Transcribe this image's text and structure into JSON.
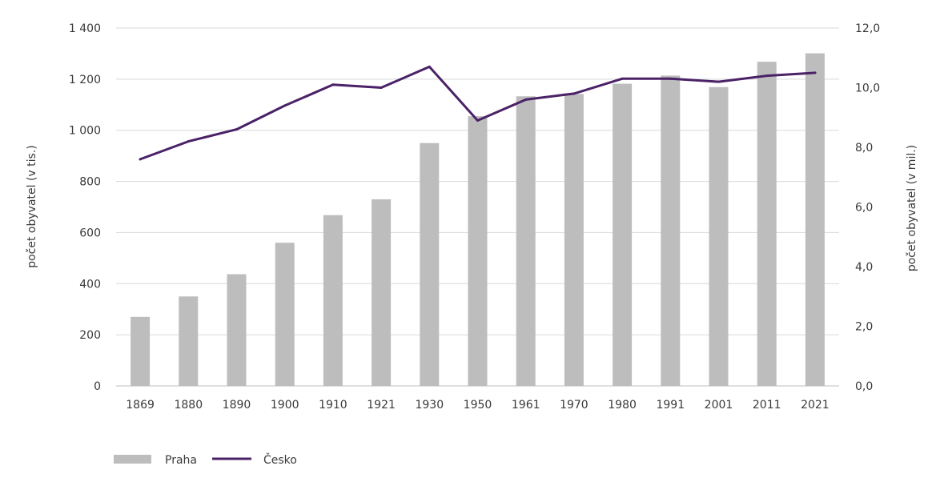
{
  "chart_data": {
    "type": "bar",
    "categories": [
      "1869",
      "1880",
      "1890",
      "1900",
      "1910",
      "1921",
      "1930",
      "1950",
      "1961",
      "1970",
      "1980",
      "1991",
      "2001",
      "2011",
      "2021"
    ],
    "series": [
      {
        "name": "Praha",
        "type": "bar",
        "axis": "left",
        "color": "#bdbdbd",
        "values": [
          270,
          350,
          437,
          560,
          668,
          730,
          950,
          1055,
          1133,
          1142,
          1182,
          1214,
          1169,
          1268,
          1301
        ]
      },
      {
        "name": "Česko",
        "type": "line",
        "axis": "right",
        "color": "#4b2267",
        "values": [
          7.6,
          8.2,
          8.6,
          9.4,
          10.1,
          10.0,
          10.7,
          8.9,
          9.6,
          9.8,
          10.3,
          10.3,
          10.2,
          10.4,
          10.5
        ]
      }
    ],
    "y_left": {
      "label": "počet obyvatel (v tis.)",
      "lim": [
        0,
        1400
      ],
      "ticks": [
        0,
        200,
        400,
        600,
        800,
        1000,
        1200,
        1400
      ],
      "tick_labels": [
        "0",
        "200",
        "400",
        "600",
        "800",
        "1 000",
        "1 200",
        "1 400"
      ]
    },
    "y_right": {
      "label": "počet obyvatel (v mil.)",
      "lim": [
        0,
        12
      ],
      "ticks": [
        0,
        2,
        4,
        6,
        8,
        10,
        12
      ],
      "tick_labels": [
        "0,0",
        "2,0",
        "4,0",
        "6,0",
        "8,0",
        "10,0",
        "12,0"
      ]
    },
    "grid": true,
    "legend": "bottom-left"
  }
}
